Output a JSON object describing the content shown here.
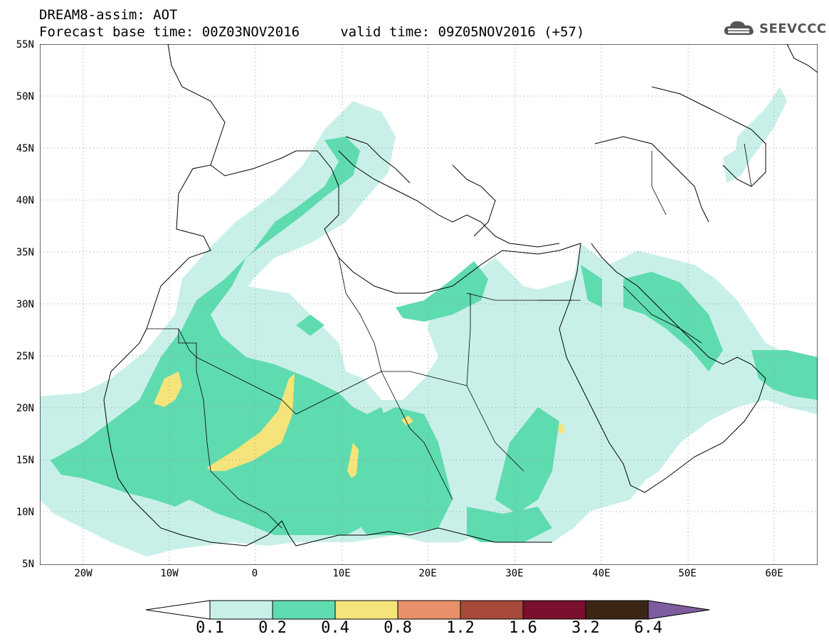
{
  "title": {
    "line1": "DREAM8-assim: AOT",
    "line2": "Forecast base time: 00Z03NOV2016     valid time: 09Z05NOV2016 (+57)"
  },
  "logo": {
    "text": "SEEVCCC",
    "icon": "cloud-icon"
  },
  "axes": {
    "lat_labels": [
      "55N",
      "50N",
      "45N",
      "40N",
      "35N",
      "30N",
      "25N",
      "20N",
      "15N",
      "10N",
      "5N"
    ],
    "lon_labels": [
      "20W",
      "10W",
      "0",
      "10E",
      "20E",
      "30E",
      "40E",
      "50E",
      "60E"
    ]
  },
  "colorbar": {
    "labels": [
      "0.1",
      "0.2",
      "0.4",
      "0.8",
      "1.2",
      "1.6",
      "3.2",
      "6.4"
    ],
    "colors": [
      "#ffffff",
      "#c8f0e8",
      "#5fdbb0",
      "#f5e47a",
      "#e8906a",
      "#a84a3a",
      "#7a0f2e",
      "#3b2616",
      "#7e5c9e"
    ]
  },
  "map": {
    "grid": "dotted",
    "fill_colors": {
      "level1": "#c8f0e8",
      "level2": "#5fdbb0",
      "level3": "#f5e47a"
    }
  }
}
